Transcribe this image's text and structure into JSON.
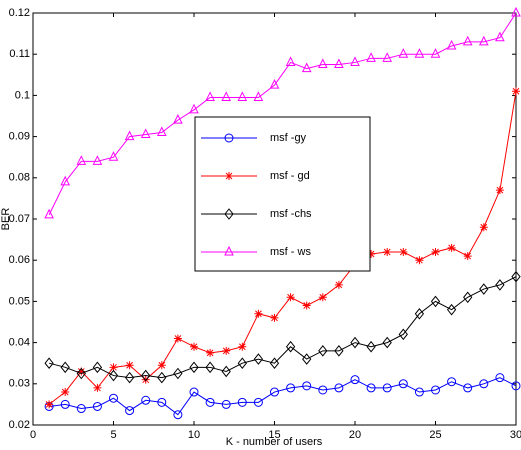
{
  "chart_data": {
    "type": "line",
    "xlabel": "K - number of users",
    "ylabel": "BER",
    "x": [
      1,
      2,
      3,
      4,
      5,
      6,
      7,
      8,
      9,
      10,
      11,
      12,
      13,
      14,
      15,
      16,
      17,
      18,
      19,
      20,
      21,
      22,
      23,
      24,
      25,
      26,
      27,
      28,
      29,
      30
    ],
    "series": [
      {
        "name": "msf -gy",
        "color": "#0000ff",
        "marker": "circle",
        "values": [
          0.0245,
          0.025,
          0.024,
          0.0245,
          0.0265,
          0.0235,
          0.026,
          0.0255,
          0.0225,
          0.028,
          0.0255,
          0.025,
          0.0255,
          0.0255,
          0.028,
          0.029,
          0.0295,
          0.0285,
          0.029,
          0.031,
          0.029,
          0.029,
          0.03,
          0.028,
          0.0285,
          0.0305,
          0.029,
          0.03,
          0.0315,
          0.0295
        ]
      },
      {
        "name": "msf - gd",
        "color": "#ff0000",
        "marker": "star",
        "values": [
          0.025,
          0.028,
          0.033,
          0.029,
          0.034,
          0.0345,
          0.031,
          0.0345,
          0.041,
          0.039,
          0.0375,
          0.038,
          0.039,
          0.047,
          0.046,
          0.051,
          0.049,
          0.051,
          0.054,
          0.059,
          0.0615,
          0.062,
          0.062,
          0.06,
          0.062,
          0.063,
          0.061,
          0.068,
          0.077,
          0.101
        ]
      },
      {
        "name": "msf -chs",
        "color": "#000000",
        "marker": "diamond",
        "values": [
          0.035,
          0.034,
          0.0325,
          0.034,
          0.032,
          0.0315,
          0.032,
          0.0315,
          0.0325,
          0.034,
          0.034,
          0.033,
          0.035,
          0.036,
          0.035,
          0.039,
          0.036,
          0.038,
          0.038,
          0.04,
          0.039,
          0.04,
          0.042,
          0.047,
          0.05,
          0.048,
          0.051,
          0.053,
          0.054,
          0.056
        ]
      },
      {
        "name": "msf - ws",
        "color": "#ff00ff",
        "marker": "triangle",
        "values": [
          0.071,
          0.079,
          0.084,
          0.084,
          0.085,
          0.09,
          0.0905,
          0.091,
          0.094,
          0.0965,
          0.0995,
          0.0995,
          0.0995,
          0.0995,
          0.1025,
          0.108,
          0.1065,
          0.1075,
          0.1075,
          0.108,
          0.109,
          0.109,
          0.11,
          0.11,
          0.11,
          0.112,
          0.113,
          0.113,
          0.114,
          0.12
        ]
      }
    ],
    "xlim": [
      0,
      30
    ],
    "xticks": [
      0,
      5,
      10,
      15,
      20,
      25,
      30
    ],
    "ylim": [
      0.02,
      0.12
    ],
    "yticks": [
      0.02,
      0.03,
      0.04,
      0.05,
      0.06,
      0.07,
      0.08,
      0.09,
      0.1,
      0.11,
      0.12
    ],
    "legend": "center"
  }
}
